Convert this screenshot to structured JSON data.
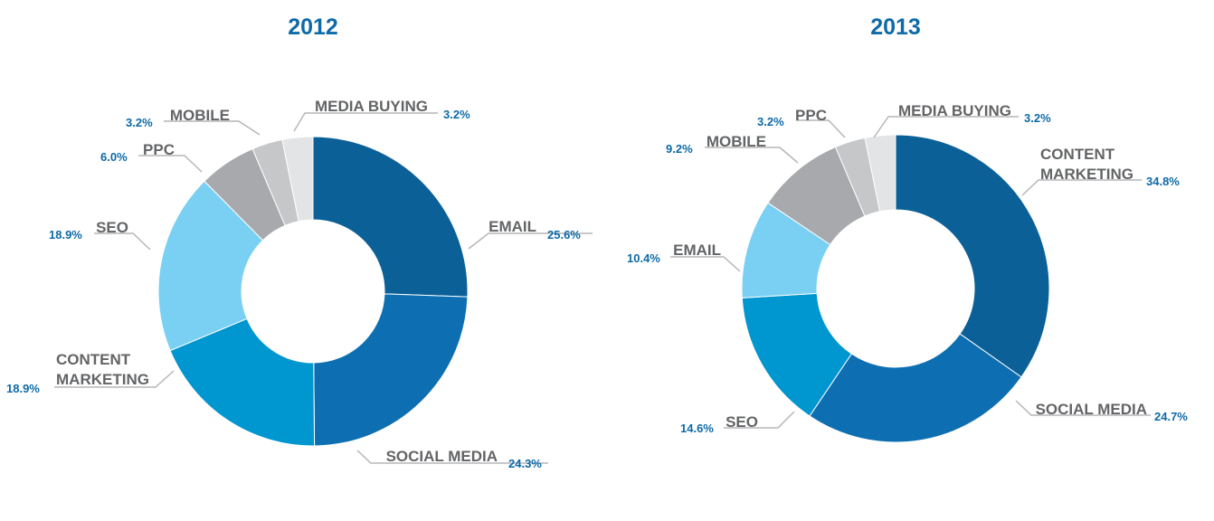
{
  "chart_data": [
    {
      "type": "pie",
      "title": "2012",
      "categories": [
        "EMAIL",
        "SOCIAL MEDIA",
        "CONTENT MARKETING",
        "SEO",
        "PPC",
        "MOBILE",
        "MEDIA BUYING"
      ],
      "values": [
        25.6,
        24.3,
        18.9,
        18.9,
        6.0,
        3.2,
        3.2
      ],
      "value_labels": [
        "25.6%",
        "24.3%",
        "18.9%",
        "18.9%",
        "6.0%",
        "3.2%",
        "3.2%"
      ],
      "colors": [
        "#0b6098",
        "#0d6fb1",
        "#0096cf",
        "#79d0f3",
        "#a7a9ac",
        "#c6c7c9",
        "#e3e4e5"
      ],
      "donut": true,
      "start": "12 o'clock, clockwise"
    },
    {
      "type": "pie",
      "title": "2013",
      "categories": [
        "CONTENT MARKETING",
        "SOCIAL MEDIA",
        "SEO",
        "EMAIL",
        "MOBILE",
        "PPC",
        "MEDIA BUYING"
      ],
      "values": [
        34.8,
        24.7,
        14.6,
        10.4,
        9.2,
        3.2,
        3.2
      ],
      "value_labels": [
        "34.8%",
        "24.7%",
        "14.6%",
        "10.4%",
        "9.2%",
        "3.2%",
        "3.2%"
      ],
      "colors": [
        "#0b6098",
        "#0d6fb1",
        "#0096cf",
        "#79d0f3",
        "#a7a9ac",
        "#c6c7c9",
        "#e3e4e5"
      ],
      "donut": true,
      "start": "12 o'clock, clockwise"
    }
  ]
}
